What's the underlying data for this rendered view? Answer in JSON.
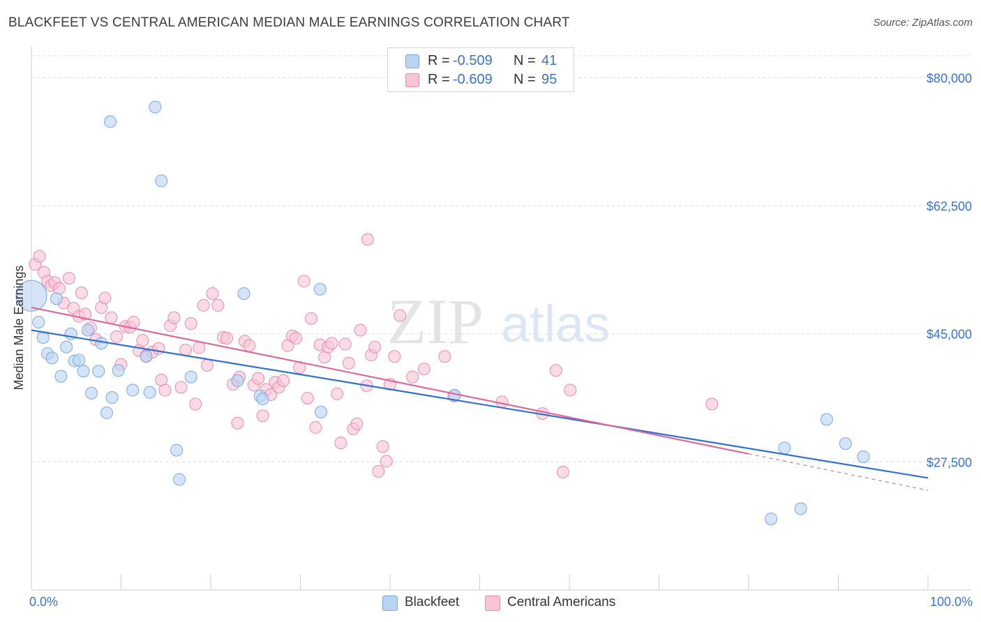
{
  "header": {
    "title": "BLACKFEET VS CENTRAL AMERICAN MEDIAN MALE EARNINGS CORRELATION CHART",
    "source": "Source: ZipAtlas.com"
  },
  "watermark": {
    "zip": "ZIP",
    "atlas": "atlas"
  },
  "legend_top": {
    "rows": [
      {
        "r_label": "R =",
        "r_value": "-0.509",
        "n_label": "N =",
        "n_value": "41"
      },
      {
        "r_label": "R =",
        "r_value": "-0.609",
        "n_label": "N =",
        "n_value": "95"
      }
    ]
  },
  "legend_bottom": {
    "items": [
      "Blackfeet",
      "Central Americans"
    ]
  },
  "colors": {
    "blackfeet_fill": "#b9d3f2",
    "blackfeet_stroke": "#7aa7e0",
    "blackfeet_line": "#2f6fd0",
    "central_fill": "#f8c5d6",
    "central_stroke": "#e98aab",
    "central_line": "#e0679a",
    "tick_text": "#3a73c8",
    "grid": "#dcdcdc"
  },
  "chart_data": {
    "type": "scatter",
    "title": "BLACKFEET VS CENTRAL AMERICAN MEDIAN MALE EARNINGS CORRELATION CHART",
    "xlabel": "",
    "ylabel": "Median Male Earnings",
    "xlim": [
      0,
      100
    ],
    "ylim": [
      10000,
      83000
    ],
    "x_tick_labels": [
      "0.0%",
      "100.0%"
    ],
    "y_ticks": [
      80000,
      62500,
      45000,
      27500
    ],
    "y_tick_labels": [
      "$80,000",
      "$62,500",
      "$45,000",
      "$27,500"
    ],
    "grid": true,
    "legend_position": "top-center",
    "series": [
      {
        "name": "Blackfeet",
        "r": -0.509,
        "n": 41,
        "trend": {
          "x": [
            0,
            100
          ],
          "y": [
            45500,
            25300
          ],
          "dashed_from": null
        },
        "points": [
          {
            "x": 0.0,
            "y": 50200,
            "big": true
          },
          {
            "x": 0.8,
            "y": 46600
          },
          {
            "x": 1.3,
            "y": 44500
          },
          {
            "x": 1.8,
            "y": 42300
          },
          {
            "x": 2.3,
            "y": 41700
          },
          {
            "x": 2.8,
            "y": 49800
          },
          {
            "x": 3.3,
            "y": 39200
          },
          {
            "x": 3.9,
            "y": 43200
          },
          {
            "x": 4.4,
            "y": 45000
          },
          {
            "x": 4.8,
            "y": 41300
          },
          {
            "x": 5.3,
            "y": 41400
          },
          {
            "x": 5.8,
            "y": 39900
          },
          {
            "x": 6.3,
            "y": 45500
          },
          {
            "x": 6.7,
            "y": 36900
          },
          {
            "x": 7.5,
            "y": 39900
          },
          {
            "x": 7.8,
            "y": 43700
          },
          {
            "x": 8.4,
            "y": 34200
          },
          {
            "x": 8.8,
            "y": 74000
          },
          {
            "x": 9.0,
            "y": 36300
          },
          {
            "x": 9.7,
            "y": 40000
          },
          {
            "x": 11.3,
            "y": 37300
          },
          {
            "x": 12.8,
            "y": 41900
          },
          {
            "x": 13.2,
            "y": 37000
          },
          {
            "x": 13.8,
            "y": 76000
          },
          {
            "x": 14.5,
            "y": 65900
          },
          {
            "x": 16.2,
            "y": 29100
          },
          {
            "x": 16.5,
            "y": 25100
          },
          {
            "x": 17.8,
            "y": 39100
          },
          {
            "x": 23.0,
            "y": 38600
          },
          {
            "x": 23.7,
            "y": 50500
          },
          {
            "x": 25.5,
            "y": 36500
          },
          {
            "x": 25.8,
            "y": 36100
          },
          {
            "x": 32.3,
            "y": 34300
          },
          {
            "x": 32.2,
            "y": 51100
          },
          {
            "x": 47.2,
            "y": 36600
          },
          {
            "x": 82.5,
            "y": 19700
          },
          {
            "x": 84.0,
            "y": 29400
          },
          {
            "x": 85.8,
            "y": 21100
          },
          {
            "x": 88.7,
            "y": 33300
          },
          {
            "x": 90.8,
            "y": 30000
          },
          {
            "x": 92.8,
            "y": 28200
          }
        ]
      },
      {
        "name": "Central Americans",
        "r": -0.609,
        "n": 95,
        "trend": {
          "x": [
            0,
            100
          ],
          "y": [
            48600,
            23600
          ],
          "dashed_from": 80
        },
        "points": [
          {
            "x": 0.4,
            "y": 54500
          },
          {
            "x": 0.9,
            "y": 55600
          },
          {
            "x": 1.4,
            "y": 53400
          },
          {
            "x": 1.8,
            "y": 52200
          },
          {
            "x": 2.2,
            "y": 51600
          },
          {
            "x": 2.6,
            "y": 52000
          },
          {
            "x": 3.1,
            "y": 51200
          },
          {
            "x": 3.6,
            "y": 49200
          },
          {
            "x": 4.2,
            "y": 52600
          },
          {
            "x": 4.7,
            "y": 48500
          },
          {
            "x": 5.3,
            "y": 47400
          },
          {
            "x": 5.6,
            "y": 50600
          },
          {
            "x": 6.0,
            "y": 47700
          },
          {
            "x": 6.6,
            "y": 45800
          },
          {
            "x": 7.2,
            "y": 44200
          },
          {
            "x": 7.8,
            "y": 48600
          },
          {
            "x": 8.2,
            "y": 49900
          },
          {
            "x": 8.9,
            "y": 47200
          },
          {
            "x": 9.5,
            "y": 44600
          },
          {
            "x": 10.0,
            "y": 40800
          },
          {
            "x": 10.5,
            "y": 46000
          },
          {
            "x": 11.0,
            "y": 45900
          },
          {
            "x": 11.4,
            "y": 46600
          },
          {
            "x": 12.0,
            "y": 42700
          },
          {
            "x": 12.4,
            "y": 44100
          },
          {
            "x": 12.8,
            "y": 42000
          },
          {
            "x": 13.5,
            "y": 42500
          },
          {
            "x": 14.2,
            "y": 43000
          },
          {
            "x": 14.5,
            "y": 38700
          },
          {
            "x": 14.9,
            "y": 37300
          },
          {
            "x": 15.5,
            "y": 46100
          },
          {
            "x": 15.9,
            "y": 47200
          },
          {
            "x": 16.7,
            "y": 37700
          },
          {
            "x": 17.2,
            "y": 42800
          },
          {
            "x": 17.8,
            "y": 46400
          },
          {
            "x": 18.3,
            "y": 35400
          },
          {
            "x": 18.7,
            "y": 43100
          },
          {
            "x": 19.2,
            "y": 48900
          },
          {
            "x": 19.6,
            "y": 40700
          },
          {
            "x": 20.2,
            "y": 50500
          },
          {
            "x": 20.8,
            "y": 48900
          },
          {
            "x": 21.4,
            "y": 44500
          },
          {
            "x": 21.8,
            "y": 44400
          },
          {
            "x": 22.5,
            "y": 38100
          },
          {
            "x": 23.0,
            "y": 32800
          },
          {
            "x": 23.2,
            "y": 39100
          },
          {
            "x": 23.8,
            "y": 44000
          },
          {
            "x": 24.3,
            "y": 43400
          },
          {
            "x": 24.8,
            "y": 38000
          },
          {
            "x": 25.3,
            "y": 38900
          },
          {
            "x": 25.8,
            "y": 33800
          },
          {
            "x": 26.2,
            "y": 37400
          },
          {
            "x": 26.7,
            "y": 36700
          },
          {
            "x": 27.2,
            "y": 38400
          },
          {
            "x": 27.6,
            "y": 37700
          },
          {
            "x": 28.1,
            "y": 38600
          },
          {
            "x": 28.6,
            "y": 43400
          },
          {
            "x": 29.1,
            "y": 44700
          },
          {
            "x": 29.5,
            "y": 44400
          },
          {
            "x": 29.9,
            "y": 40400
          },
          {
            "x": 30.4,
            "y": 52200
          },
          {
            "x": 30.8,
            "y": 36200
          },
          {
            "x": 31.2,
            "y": 47100
          },
          {
            "x": 31.7,
            "y": 32200
          },
          {
            "x": 32.2,
            "y": 43500
          },
          {
            "x": 32.7,
            "y": 41800
          },
          {
            "x": 33.1,
            "y": 43200
          },
          {
            "x": 33.5,
            "y": 43700
          },
          {
            "x": 34.1,
            "y": 36800
          },
          {
            "x": 34.5,
            "y": 30100
          },
          {
            "x": 35.0,
            "y": 43600
          },
          {
            "x": 35.4,
            "y": 41000
          },
          {
            "x": 35.9,
            "y": 32000
          },
          {
            "x": 36.3,
            "y": 32700
          },
          {
            "x": 36.7,
            "y": 45500
          },
          {
            "x": 37.4,
            "y": 37900
          },
          {
            "x": 37.9,
            "y": 42100
          },
          {
            "x": 38.3,
            "y": 43200
          },
          {
            "x": 38.7,
            "y": 26200
          },
          {
            "x": 39.2,
            "y": 29600
          },
          {
            "x": 39.6,
            "y": 27600
          },
          {
            "x": 40.0,
            "y": 38100
          },
          {
            "x": 40.5,
            "y": 41900
          },
          {
            "x": 41.1,
            "y": 47500
          },
          {
            "x": 42.5,
            "y": 39100
          },
          {
            "x": 43.8,
            "y": 40200
          },
          {
            "x": 46.1,
            "y": 41900
          },
          {
            "x": 47.1,
            "y": 36500
          },
          {
            "x": 52.5,
            "y": 35700
          },
          {
            "x": 57.0,
            "y": 34100
          },
          {
            "x": 59.3,
            "y": 26100
          },
          {
            "x": 58.5,
            "y": 40000
          },
          {
            "x": 60.1,
            "y": 37300
          },
          {
            "x": 75.9,
            "y": 35400
          },
          {
            "x": 37.5,
            "y": 57900
          }
        ]
      }
    ]
  }
}
